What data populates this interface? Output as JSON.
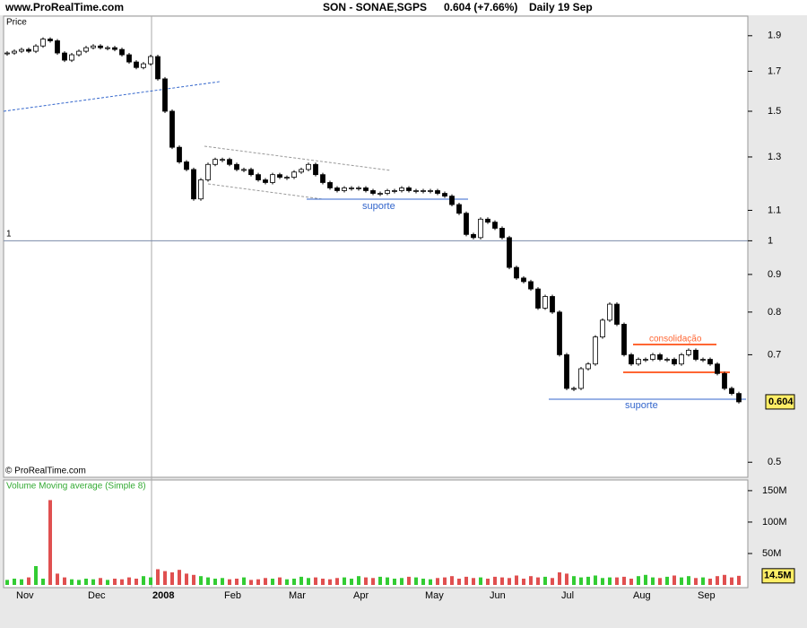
{
  "header": {
    "site": "www.ProRealTime.com",
    "title": "SON - SONAE,SGPS",
    "price_change": "0.604 (+7.66%)",
    "period": "Daily",
    "date": "19 Sep"
  },
  "chart_data": [
    {
      "type": "candlestick",
      "label": "Price",
      "log_scale": true,
      "ylim": [
        0.477,
        2.02
      ],
      "yticks": [
        0.5,
        0.7,
        0.8,
        0.9,
        1,
        1.1,
        1.3,
        1.5,
        1.7,
        1.9
      ],
      "reference_label": "1",
      "last_price": 0.604,
      "copyright": "© ProRealTime.com",
      "annotations": [
        "suporte",
        "suporte",
        "consolidação"
      ],
      "up_color": "#ffffff",
      "down_color": "#000000",
      "categories": [
        null,
        "Nov",
        null,
        null,
        null,
        null,
        null,
        null,
        null,
        null,
        null,
        "Dec",
        null,
        null,
        null,
        null,
        null,
        null,
        null,
        null,
        "2008",
        null,
        null,
        null,
        null,
        null,
        null,
        null,
        null,
        null,
        "Feb",
        null,
        null,
        null,
        null,
        null,
        null,
        null,
        null,
        "Mar",
        null,
        null,
        null,
        null,
        null,
        null,
        null,
        null,
        "Apr",
        null,
        null,
        null,
        null,
        null,
        null,
        null,
        null,
        null,
        "May",
        null,
        null,
        null,
        null,
        null,
        null,
        null,
        null,
        "Jun",
        null,
        null,
        null,
        null,
        null,
        null,
        null,
        null,
        null,
        "Jul",
        null,
        null,
        null,
        null,
        null,
        null,
        null,
        null,
        null,
        "Aug",
        null,
        null,
        null,
        null,
        null,
        null,
        null,
        null,
        "Sep",
        null,
        null,
        null,
        null,
        null,
        null
      ],
      "values": [
        1.8,
        1.81,
        1.82,
        1.81,
        1.84,
        1.88,
        1.87,
        1.8,
        1.76,
        1.79,
        1.81,
        1.83,
        1.84,
        1.83,
        1.83,
        1.82,
        1.79,
        1.75,
        1.72,
        1.74,
        1.78,
        1.66,
        1.5,
        1.34,
        1.28,
        1.25,
        1.14,
        1.21,
        1.27,
        1.29,
        1.29,
        1.27,
        1.25,
        1.25,
        1.23,
        1.21,
        1.2,
        1.23,
        1.22,
        1.22,
        1.24,
        1.25,
        1.27,
        1.23,
        1.2,
        1.18,
        1.17,
        1.18,
        1.18,
        1.18,
        1.17,
        1.16,
        1.16,
        1.17,
        1.17,
        1.18,
        1.17,
        1.17,
        1.17,
        1.17,
        1.16,
        1.15,
        1.12,
        1.09,
        1.02,
        1.01,
        1.07,
        1.06,
        1.04,
        1.01,
        0.92,
        0.89,
        0.88,
        0.86,
        0.81,
        0.84,
        0.8,
        0.7,
        0.63,
        0.63,
        0.67,
        0.68,
        0.74,
        0.78,
        0.82,
        0.77,
        0.7,
        0.68,
        0.69,
        0.69,
        0.7,
        0.69,
        0.69,
        0.68,
        0.7,
        0.71,
        0.69,
        0.69,
        0.68,
        0.66,
        0.63,
        0.62,
        0.604
      ]
    },
    {
      "type": "volume_bar",
      "label": "Volume Moving average (Simple 8)",
      "ylim": [
        0,
        167
      ],
      "yticks": [
        {
          "value": 50,
          "label": "50M"
        },
        {
          "value": 100,
          "label": "100M"
        },
        {
          "value": 150,
          "label": "150M"
        }
      ],
      "last_volume": {
        "value": 14.5,
        "label": "14.5M"
      },
      "up_color": "#33cc33",
      "down_color": "#e05050",
      "values": [
        8,
        10,
        9,
        12,
        30,
        10,
        135,
        18,
        12,
        9,
        8,
        10,
        9,
        11,
        8,
        10,
        9,
        12,
        10,
        14,
        12,
        25,
        22,
        20,
        24,
        18,
        16,
        14,
        12,
        10,
        11,
        9,
        10,
        12,
        8,
        9,
        11,
        10,
        12,
        9,
        10,
        13,
        11,
        12,
        10,
        9,
        11,
        12,
        10,
        14,
        12,
        11,
        13,
        12,
        10,
        11,
        13,
        12,
        10,
        9,
        11,
        12,
        14,
        10,
        13,
        11,
        12,
        10,
        13,
        12,
        11,
        15,
        10,
        14,
        12,
        13,
        11,
        20,
        18,
        14,
        12,
        13,
        15,
        11,
        12,
        12,
        13,
        10,
        14,
        16,
        12,
        11,
        13,
        15,
        12,
        14,
        11,
        12,
        10,
        14,
        16,
        12,
        14.5
      ]
    }
  ]
}
